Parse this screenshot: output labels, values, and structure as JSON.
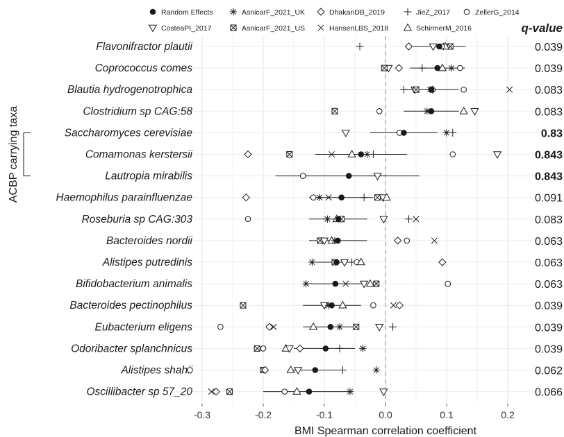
{
  "chart_data": {
    "type": "forest",
    "xlabel": "BMI Spearman correlation coefficient",
    "ylabel": "ACBP carrying taxa",
    "xlim": [
      -0.345,
      0.255
    ],
    "xticks": [
      -0.3,
      -0.2,
      -0.1,
      0.0,
      0.1,
      0.2
    ],
    "xtick_labels": [
      "-0.3",
      "-0.2",
      "-0.1",
      "0.0",
      "0.1",
      "0.2"
    ],
    "reference_line_x": 0.0,
    "grid": true,
    "legend_position": "top",
    "q_value_header": "q-value",
    "studies": [
      {
        "name": "Random Effects",
        "marker": "filled-circle"
      },
      {
        "name": "AsnicarF_2021_UK",
        "marker": "asterisk"
      },
      {
        "name": "DhakanDB_2019",
        "marker": "diamond"
      },
      {
        "name": "JieZ_2017",
        "marker": "plus"
      },
      {
        "name": "ZellerG_2014",
        "marker": "circle"
      },
      {
        "name": "CosteaPI_2017",
        "marker": "triangle-down"
      },
      {
        "name": "AsnicarF_2021_US",
        "marker": "crossed-square"
      },
      {
        "name": "HansenLBS_2018",
        "marker": "cross"
      },
      {
        "name": "SchirmerM_2016",
        "marker": "triangle-up"
      }
    ],
    "rows": [
      {
        "taxon": "Flavonifractor plautii",
        "q": "0.039",
        "bold": false,
        "re": 0.088,
        "ci": [
          0.045,
          0.131
        ],
        "points": {
          "asterisk": 0.095,
          "diamond": 0.038,
          "plus": -0.042,
          "triangle-down": 0.078,
          "crossed-square": 0.106,
          "triangle-up": 0.098,
          "circle": 0.092
        }
      },
      {
        "taxon": "Coprococcus comes",
        "q": "0.039",
        "bold": false,
        "re": 0.085,
        "ci": [
          0.04,
          0.13
        ],
        "points": {
          "asterisk": 0.108,
          "diamond": 0.022,
          "plus": 0.06,
          "triangle-down": 0.005,
          "crossed-square": -0.002,
          "triangle-up": 0.093,
          "circle": 0.122
        }
      },
      {
        "taxon": "Blautia hydrogenotrophica",
        "q": "0.083",
        "bold": false,
        "re": 0.075,
        "ci": [
          0.03,
          0.12
        ],
        "points": {
          "asterisk": 0.073,
          "diamond": 0.077,
          "plus": 0.03,
          "triangle-down": 0.048,
          "crossed-square": 0.05,
          "cross": 0.203,
          "circle": 0.128
        }
      },
      {
        "taxon": "Clostridium sp CAG:58",
        "q": "0.083",
        "bold": false,
        "re": 0.075,
        "ci": [
          0.03,
          0.12
        ],
        "points": {
          "asterisk": 0.068,
          "crossed-square": -0.083,
          "circle": -0.01,
          "triangle-up": 0.128,
          "triangle-down": 0.146
        }
      },
      {
        "taxon": "Saccharomyces cerevisiae",
        "q": "0.83",
        "bold": true,
        "re": 0.03,
        "ci": [
          -0.025,
          0.085
        ],
        "points": {
          "triangle-down": -0.065,
          "circle": 0.023,
          "asterisk": 0.1,
          "plus": 0.11
        }
      },
      {
        "taxon": "Comamonas kerstersii",
        "q": "0.843",
        "bold": true,
        "re": -0.04,
        "ci": [
          -0.115,
          0.035
        ],
        "points": {
          "diamond": -0.225,
          "crossed-square": -0.157,
          "cross": -0.088,
          "triangle-up": -0.055,
          "asterisk": -0.03,
          "plus": -0.02,
          "circle": 0.11,
          "triangle-down": 0.183
        }
      },
      {
        "taxon": "Lautropia mirabilis",
        "q": "0.843",
        "bold": true,
        "re": -0.06,
        "ci": [
          -0.18,
          0.055
        ],
        "points": {
          "circle": -0.135,
          "triangle-down": -0.013
        }
      },
      {
        "taxon": "Haemophilus parainfluenzae",
        "q": "0.091",
        "bold": false,
        "re": -0.072,
        "ci": [
          -0.125,
          -0.02
        ],
        "points": {
          "diamond": -0.228,
          "circle": -0.118,
          "asterisk": -0.108,
          "cross": -0.093,
          "plus": -0.035,
          "crossed-square": -0.013,
          "triangle-down": -0.004,
          "triangle-up": 0.002
        }
      },
      {
        "taxon": "Roseburia sp CAG:303",
        "q": "0.083",
        "bold": false,
        "re": -0.077,
        "ci": [
          -0.125,
          -0.03
        ],
        "points": {
          "circle": -0.225,
          "asterisk": -0.095,
          "triangle-up": -0.08,
          "crossed-square": -0.072,
          "triangle-down": -0.003,
          "plus": 0.038,
          "cross": 0.05
        }
      },
      {
        "taxon": "Bacteroides nordii",
        "q": "0.063",
        "bold": false,
        "re": -0.078,
        "ci": [
          -0.125,
          -0.03
        ],
        "points": {
          "crossed-square": -0.107,
          "triangle-down": -0.1,
          "triangle-up": -0.088,
          "asterisk": -0.083,
          "diamond": 0.02,
          "circle": 0.035,
          "cross": 0.08
        }
      },
      {
        "taxon": "Alistipes putredinis",
        "q": "0.063",
        "bold": false,
        "re": -0.08,
        "ci": [
          -0.12,
          -0.04
        ],
        "points": {
          "asterisk": -0.12,
          "crossed-square": -0.083,
          "triangle-down": -0.067,
          "plus": -0.055,
          "circle": -0.047,
          "triangle-up": -0.04,
          "diamond": 0.093
        }
      },
      {
        "taxon": "Bifidobacterium animalis",
        "q": "0.063",
        "bold": false,
        "re": -0.082,
        "ci": [
          -0.13,
          -0.035
        ],
        "points": {
          "asterisk": -0.13,
          "cross": -0.065,
          "triangle-down": -0.035,
          "triangle-up": -0.025,
          "crossed-square": -0.015,
          "circle": 0.102
        }
      },
      {
        "taxon": "Bacteroides pectinophilus",
        "q": "0.039",
        "bold": false,
        "re": -0.088,
        "ci": [
          -0.135,
          -0.04
        ],
        "points": {
          "crossed-square": -0.233,
          "triangle-down": -0.1,
          "asterisk": -0.093,
          "triangle-up": -0.07,
          "circle": -0.02,
          "cross": 0.013,
          "diamond": 0.023
        }
      },
      {
        "taxon": "Eubacterium eligens",
        "q": "0.039",
        "bold": false,
        "re": -0.09,
        "ci": [
          -0.135,
          -0.045
        ],
        "points": {
          "circle": -0.27,
          "diamond": -0.19,
          "cross": -0.183,
          "triangle-up": -0.118,
          "asterisk": -0.075,
          "crossed-square": -0.048,
          "triangle-down": -0.01,
          "plus": 0.012
        }
      },
      {
        "taxon": "Odoribacter splanchnicus",
        "q": "0.039",
        "bold": false,
        "re": -0.098,
        "ci": [
          -0.15,
          -0.05
        ],
        "points": {
          "crossed-square": -0.21,
          "circle": -0.2,
          "triangle-up": -0.163,
          "triangle-down": -0.157,
          "diamond": -0.14,
          "plus": -0.075,
          "asterisk": -0.037
        }
      },
      {
        "taxon": "Alistipes shahii",
        "q": "0.062",
        "bold": false,
        "re": -0.115,
        "ci": [
          -0.16,
          -0.07
        ],
        "points": {
          "circle": -0.32,
          "crossed-square": -0.2,
          "diamond": -0.197,
          "triangle-up": -0.155,
          "triangle-down": -0.143,
          "plus": -0.07,
          "asterisk": -0.015
        }
      },
      {
        "taxon": "Oscillibacter sp 57_20",
        "q": "0.066",
        "bold": false,
        "re": -0.125,
        "ci": [
          -0.2,
          -0.06
        ],
        "points": {
          "cross": -0.285,
          "diamond": -0.277,
          "crossed-square": -0.255,
          "circle": -0.165,
          "triangle-up": -0.145,
          "asterisk": -0.058,
          "triangle-down": -0.003
        }
      }
    ],
    "bracket_rows": [
      4,
      6
    ]
  }
}
